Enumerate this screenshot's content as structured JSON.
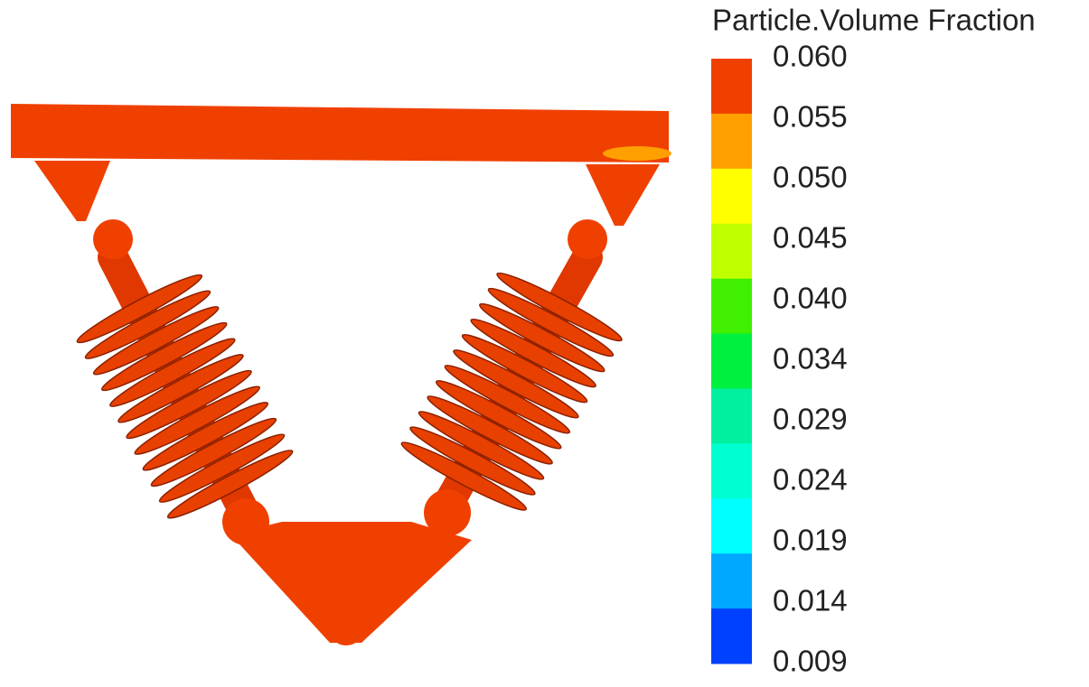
{
  "legend": {
    "title": "Particle.Volume Fraction",
    "labels": [
      "0.060",
      "0.055",
      "0.050",
      "0.045",
      "0.040",
      "0.034",
      "0.029",
      "0.024",
      "0.019",
      "0.014",
      "0.009"
    ],
    "colors": [
      "#f04000",
      "#ffa000",
      "#ffff00",
      "#c0ff00",
      "#40f000",
      "#00f040",
      "#00f0a0",
      "#00ffd0",
      "#00ffff",
      "#00a8ff",
      "#0040ff"
    ]
  }
}
